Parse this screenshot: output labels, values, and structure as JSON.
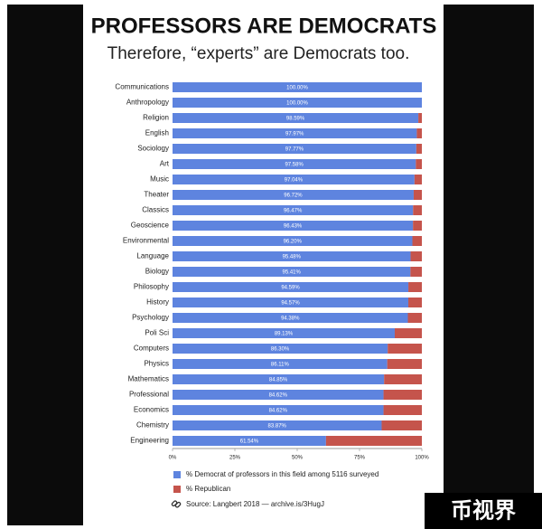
{
  "chart_data": {
    "type": "stacked-bar-horizontal",
    "title": "PROFESSORS ARE DEMOCRATS",
    "subtitle": "Therefore, “experts” are Democrats too.",
    "categories": [
      "Communications",
      "Anthropology",
      "Religion",
      "English",
      "Sociology",
      "Art",
      "Music",
      "Theater",
      "Classics",
      "Geoscience",
      "Environmental",
      "Language",
      "Biology",
      "Philosophy",
      "History",
      "Psychology",
      "Poli Sci",
      "Computers",
      "Physics",
      "Mathematics",
      "Professional",
      "Economics",
      "Chemistry",
      "Engineering"
    ],
    "series": [
      {
        "name": "% Democrat of professors in this field among 5116 surveyed",
        "color": "#5e84df",
        "values": [
          100,
          100,
          98.59,
          97.97,
          97.77,
          97.58,
          97.04,
          96.72,
          96.47,
          96.43,
          96.2,
          95.48,
          95.41,
          94.59,
          94.57,
          94.38,
          89.13,
          86.3,
          86.11,
          84.85,
          84.62,
          84.62,
          83.87,
          61.54
        ],
        "value_labels": [
          "100.00%",
          "100.00%",
          "98.59%",
          "97.97%",
          "97.77%",
          "97.58%",
          "97.04%",
          "96.72%",
          "96.47%",
          "96.43%",
          "96.20%",
          "95.48%",
          "95.41%",
          "94.59%",
          "94.57%",
          "94.38%",
          "89.13%",
          "86.30%",
          "86.11%",
          "84.85%",
          "84.62%",
          "84.62%",
          "83.87%",
          "61.54%"
        ]
      },
      {
        "name": "% Republican",
        "color": "#c5544c",
        "values": [
          0,
          0,
          1.41,
          2.03,
          2.23,
          2.42,
          2.96,
          3.28,
          3.53,
          3.57,
          3.8,
          4.52,
          4.59,
          5.41,
          5.43,
          5.62,
          10.87,
          13.7,
          13.89,
          15.15,
          15.38,
          15.38,
          16.13,
          38.46
        ]
      }
    ],
    "xlim": [
      0,
      100
    ],
    "xticks": [
      {
        "value": 0,
        "label": "0%"
      },
      {
        "value": 25,
        "label": "25%"
      },
      {
        "value": 50,
        "label": "50%"
      },
      {
        "value": 75,
        "label": "75%"
      },
      {
        "value": 100,
        "label": "100%"
      }
    ],
    "source": "Source: Langbert 2018 — archive.is/3HugJ",
    "watermark": "币视界"
  }
}
